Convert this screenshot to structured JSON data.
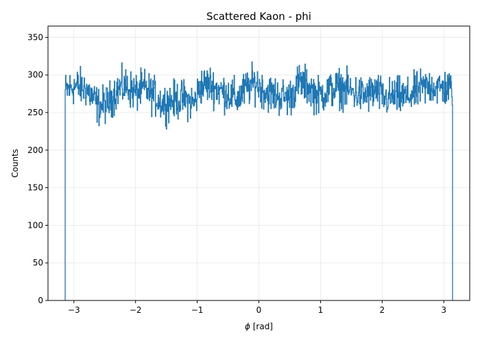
{
  "chart_data": {
    "type": "histogram",
    "title": "Scattered Kaon - phi",
    "xlabel_symbol": "ϕ",
    "xlabel_unit": " [rad]",
    "ylabel": "Counts",
    "xlim": [
      -3.42,
      3.42
    ],
    "ylim": [
      0,
      365
    ],
    "xticks": [
      -3,
      -2,
      -1,
      0,
      1,
      2,
      3
    ],
    "xtick_labels": [
      "−3",
      "−2",
      "−1",
      "0",
      "1",
      "2",
      "3"
    ],
    "yticks": [
      0,
      50,
      100,
      150,
      200,
      250,
      300,
      350
    ],
    "ytick_labels": [
      "0",
      "50",
      "100",
      "150",
      "200",
      "250",
      "300",
      "350"
    ],
    "grid": true,
    "color": "#1f77b4",
    "bins": {
      "x_start": -3.1416,
      "x_end": 3.1416,
      "count": 1000
    },
    "profile": [
      [
        -3.14,
        278
      ],
      [
        -3.0,
        285
      ],
      [
        -2.8,
        282
      ],
      [
        -2.7,
        270
      ],
      [
        -2.6,
        258
      ],
      [
        -2.45,
        262
      ],
      [
        -2.3,
        280
      ],
      [
        -2.15,
        285
      ],
      [
        -2.0,
        276
      ],
      [
        -1.85,
        282
      ],
      [
        -1.7,
        272
      ],
      [
        -1.55,
        262
      ],
      [
        -1.4,
        266
      ],
      [
        -1.2,
        268
      ],
      [
        -1.05,
        262
      ],
      [
        -0.95,
        285
      ],
      [
        -0.8,
        288
      ],
      [
        -0.65,
        280
      ],
      [
        -0.5,
        275
      ],
      [
        -0.35,
        268
      ],
      [
        -0.2,
        282
      ],
      [
        -0.05,
        290
      ],
      [
        0.1,
        278
      ],
      [
        0.3,
        272
      ],
      [
        0.5,
        270
      ],
      [
        0.65,
        290
      ],
      [
        0.8,
        285
      ],
      [
        0.95,
        272
      ],
      [
        1.1,
        278
      ],
      [
        1.3,
        283
      ],
      [
        1.5,
        278
      ],
      [
        1.7,
        272
      ],
      [
        1.9,
        278
      ],
      [
        2.05,
        268
      ],
      [
        2.2,
        272
      ],
      [
        2.4,
        270
      ],
      [
        2.6,
        280
      ],
      [
        2.8,
        286
      ],
      [
        2.95,
        282
      ],
      [
        3.14,
        282
      ]
    ],
    "amplitude": 22
  }
}
